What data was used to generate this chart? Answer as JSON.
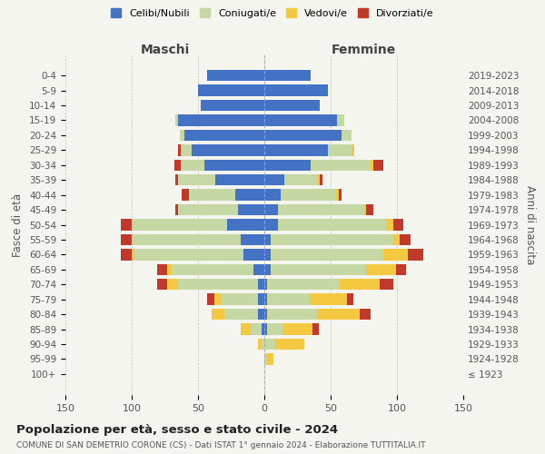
{
  "age_groups": [
    "100+",
    "95-99",
    "90-94",
    "85-89",
    "80-84",
    "75-79",
    "70-74",
    "65-69",
    "60-64",
    "55-59",
    "50-54",
    "45-49",
    "40-44",
    "35-39",
    "30-34",
    "25-29",
    "20-24",
    "15-19",
    "10-14",
    "5-9",
    "0-4"
  ],
  "birth_years": [
    "≤ 1923",
    "1924-1928",
    "1929-1933",
    "1934-1938",
    "1939-1943",
    "1944-1948",
    "1949-1953",
    "1954-1958",
    "1959-1963",
    "1964-1968",
    "1969-1973",
    "1974-1978",
    "1979-1983",
    "1984-1988",
    "1989-1993",
    "1994-1998",
    "1999-2003",
    "2004-2008",
    "2009-2013",
    "2014-2018",
    "2019-2023"
  ],
  "male": {
    "celibi": [
      0,
      0,
      0,
      2,
      5,
      5,
      5,
      8,
      16,
      18,
      28,
      20,
      22,
      37,
      45,
      55,
      60,
      65,
      48,
      50,
      43
    ],
    "coniugati": [
      0,
      0,
      3,
      8,
      25,
      28,
      60,
      62,
      82,
      82,
      72,
      45,
      35,
      28,
      18,
      8,
      4,
      2,
      0,
      0,
      0
    ],
    "vedovi": [
      0,
      0,
      2,
      8,
      10,
      5,
      8,
      3,
      2,
      0,
      0,
      0,
      0,
      0,
      0,
      0,
      0,
      0,
      0,
      0,
      0
    ],
    "divorziati": [
      0,
      0,
      0,
      0,
      0,
      5,
      8,
      8,
      8,
      8,
      8,
      2,
      5,
      2,
      5,
      2,
      0,
      0,
      0,
      0,
      0
    ]
  },
  "female": {
    "nubili": [
      0,
      0,
      0,
      2,
      2,
      2,
      2,
      5,
      5,
      5,
      10,
      10,
      12,
      15,
      35,
      48,
      58,
      55,
      42,
      48,
      35
    ],
    "coniugate": [
      0,
      2,
      8,
      12,
      38,
      32,
      55,
      72,
      85,
      92,
      82,
      65,
      42,
      25,
      45,
      18,
      8,
      5,
      0,
      0,
      0
    ],
    "vedove": [
      0,
      5,
      22,
      22,
      32,
      28,
      30,
      22,
      18,
      5,
      5,
      2,
      2,
      2,
      2,
      2,
      0,
      0,
      0,
      0,
      0
    ],
    "divorziate": [
      0,
      0,
      0,
      5,
      8,
      5,
      10,
      8,
      12,
      8,
      8,
      5,
      2,
      2,
      8,
      0,
      0,
      0,
      0,
      0,
      0
    ]
  },
  "colors": {
    "celibi_nubili": "#4472c4",
    "coniugati_e": "#c5d8a4",
    "vedovi_e": "#f5c842",
    "divorziati_e": "#c0392b"
  },
  "xlim": 150,
  "title": "Popolazione per età, sesso e stato civile - 2024",
  "subtitle": "COMUNE DI SAN DEMETRIO CORONE (CS) - Dati ISTAT 1° gennaio 2024 - Elaborazione TUTTITALIA.IT",
  "ylabel_left": "Fasce di età",
  "ylabel_right": "Anni di nascita",
  "legend_labels": [
    "Celibi/Nubili",
    "Coniugati/e",
    "Vedovi/e",
    "Divorziati/e"
  ],
  "background_color": "#f5f5f0"
}
